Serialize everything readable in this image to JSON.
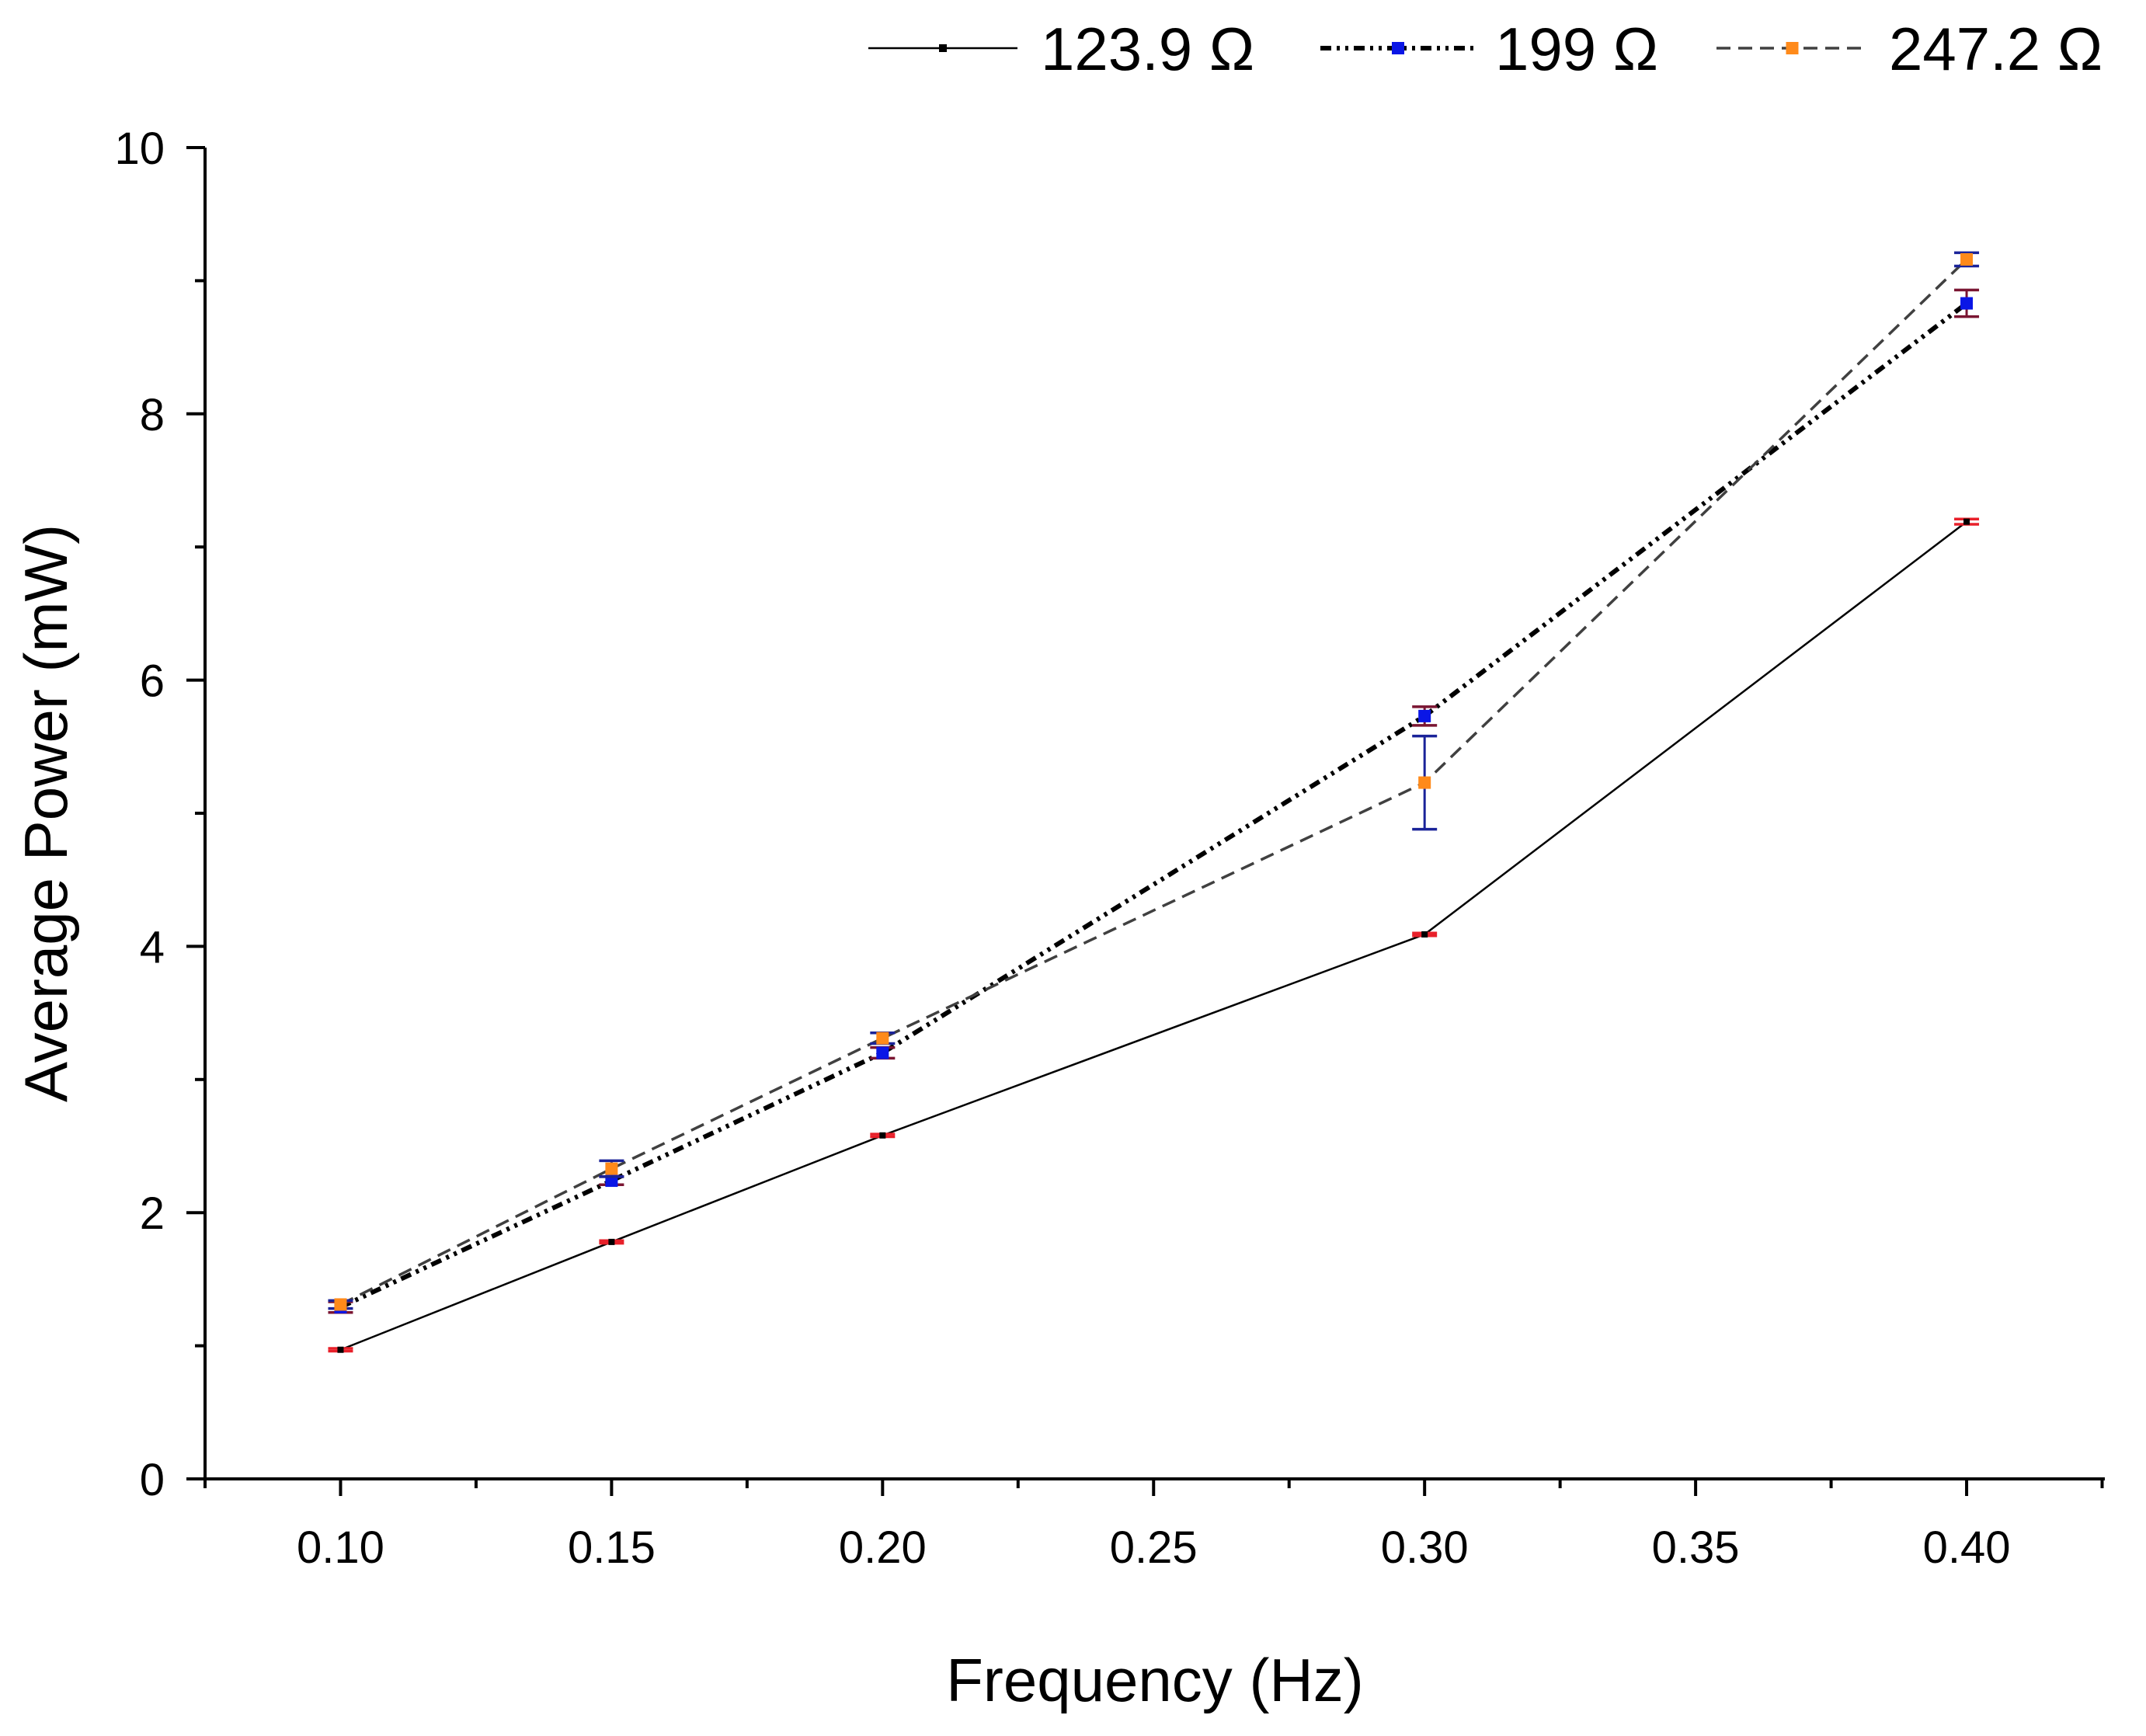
{
  "chart_data": {
    "type": "line",
    "title": "",
    "xlabel": "Frequency (Hz)",
    "ylabel": "Average Power (mW)",
    "xlim": [
      0.075,
      0.4255
    ],
    "ylim": [
      0,
      10
    ],
    "x_ticks": [
      0.1,
      0.15,
      0.2,
      0.25,
      0.3,
      0.35,
      0.4
    ],
    "x_tick_labels": [
      "0.10",
      "0.15",
      "0.20",
      "0.25",
      "0.30",
      "0.35",
      "0.40"
    ],
    "y_ticks": [
      0,
      2,
      4,
      6,
      8,
      10
    ],
    "y_tick_labels": [
      "0",
      "2",
      "4",
      "6",
      "8",
      "10"
    ],
    "grid": false,
    "legend_position": "top",
    "x": [
      0.1,
      0.15,
      0.2,
      0.3,
      0.4
    ],
    "series": [
      {
        "name": "123.9 Ω",
        "values": [
          0.97,
          1.78,
          2.58,
          4.09,
          7.19
        ],
        "errors": [
          0.01,
          0.01,
          0.01,
          0.01,
          0.02
        ],
        "color": "#000000",
        "marker_color": "#000000",
        "errorbar_color": "#e8202a",
        "dash": "solid"
      },
      {
        "name": "199 Ω",
        "values": [
          1.29,
          2.24,
          3.2,
          5.73,
          8.83
        ],
        "errors": [
          0.04,
          0.03,
          0.04,
          0.07,
          0.1
        ],
        "color": "#000000",
        "marker_color": "#0a16e6",
        "errorbar_color": "#7a1532",
        "dash": "dashdot"
      },
      {
        "name": "247.2 Ω",
        "values": [
          1.31,
          2.33,
          3.31,
          5.23,
          9.16
        ],
        "errors": [
          0.03,
          0.06,
          0.04,
          0.35,
          0.05
        ],
        "color": "#404040",
        "marker_color": "#ff8a1a",
        "errorbar_color": "#1a2399",
        "dash": "dash"
      }
    ]
  }
}
